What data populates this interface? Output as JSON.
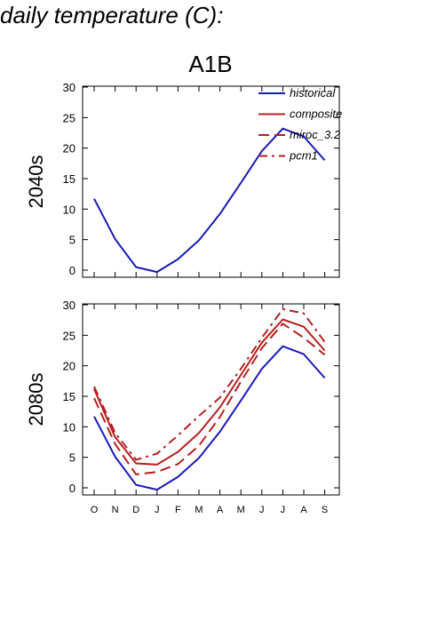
{
  "page": {
    "title": "daily temperature (C):"
  },
  "chart_data": {
    "type": "line",
    "title": "A1B",
    "categories": [
      "O",
      "N",
      "D",
      "J",
      "F",
      "M",
      "A",
      "M",
      "J",
      "J",
      "A",
      "S"
    ],
    "ylim": [
      0,
      30
    ],
    "yticks": [
      0,
      5,
      10,
      15,
      20,
      25,
      30
    ],
    "grid": false,
    "legend": {
      "placement": "top-right",
      "entries": [
        {
          "label": "historical",
          "color": "#1a1ab8",
          "dash": "solid"
        },
        {
          "label": "composite",
          "color": "#b51f1f",
          "dash": "solid"
        },
        {
          "label": "miroc_3.2",
          "color": "#b51f1f",
          "dash": "long-dash"
        },
        {
          "label": "pcm1",
          "color": "#b51f1f",
          "dash": "dash-dot"
        }
      ]
    },
    "panels": [
      {
        "ylabel": "2040s",
        "series": [
          {
            "name": "historical",
            "color": "#1a1ab8",
            "dash": "solid",
            "values": [
              11.7,
              5.1,
              0.5,
              -0.3,
              1.8,
              4.9,
              9.2,
              14.3,
              19.5,
              23.2,
              21.9,
              18.0
            ]
          }
        ]
      },
      {
        "ylabel": "2080s",
        "series": [
          {
            "name": "historical",
            "color": "#1a1ab8",
            "dash": "solid",
            "values": [
              11.7,
              5.1,
              0.5,
              -0.3,
              1.8,
              4.9,
              9.2,
              14.3,
              19.5,
              23.2,
              21.9,
              18.0
            ]
          },
          {
            "name": "composite",
            "color": "#b51f1f",
            "dash": "solid",
            "values": [
              16.2,
              8.3,
              4.0,
              3.8,
              5.9,
              9.0,
              13.2,
              18.5,
              23.8,
              27.6,
              26.4,
              22.5
            ]
          },
          {
            "name": "miroc_3.2",
            "color": "#b51f1f",
            "dash": "long-dash",
            "values": [
              14.7,
              7.2,
              2.2,
              2.6,
              3.9,
              6.9,
              11.6,
              17.4,
              22.9,
              26.9,
              24.6,
              21.8
            ]
          },
          {
            "name": "pcm1",
            "color": "#b51f1f",
            "dash": "dash-dot",
            "values": [
              16.6,
              9.0,
              4.6,
              5.6,
              8.6,
              11.8,
              14.8,
              19.5,
              24.6,
              29.3,
              28.6,
              23.9
            ]
          }
        ]
      }
    ]
  }
}
